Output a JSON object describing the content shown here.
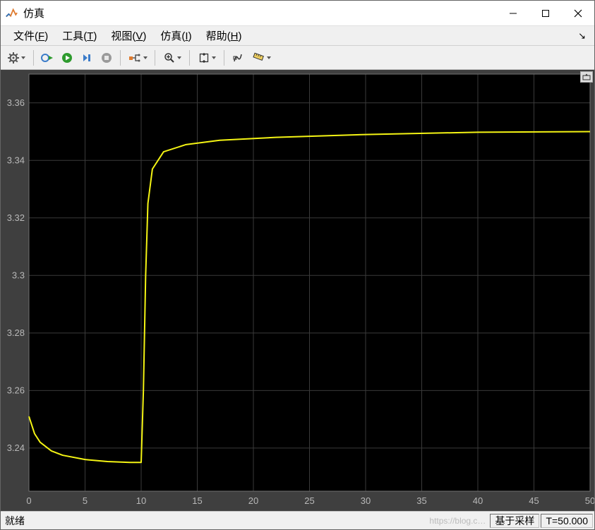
{
  "window": {
    "title": "仿真",
    "app_icon_colors": {
      "orange": "#e07b2e",
      "blue": "#2d6fb7"
    }
  },
  "menu": {
    "items": [
      {
        "label": "文件",
        "accel": "F"
      },
      {
        "label": "工具",
        "accel": "T"
      },
      {
        "label": "视图",
        "accel": "V"
      },
      {
        "label": "仿真",
        "accel": "I"
      },
      {
        "label": "帮助",
        "accel": "H"
      }
    ]
  },
  "toolbar": {
    "gear": {
      "name": "gear-icon",
      "dropdown": true
    },
    "rerun": {
      "name": "rerun-icon"
    },
    "play": {
      "name": "play-icon",
      "color": "#2e9b2e"
    },
    "step": {
      "name": "step-icon",
      "color": "#3b7cc9"
    },
    "stop": {
      "name": "stop-icon",
      "disabled_color": "#9a9a9a"
    },
    "signal": {
      "name": "signal-selector-icon",
      "dropdown": true
    },
    "zoom": {
      "name": "zoom-icon",
      "dropdown": true
    },
    "autoscale": {
      "name": "autoscale-icon",
      "dropdown": true
    },
    "cursor": {
      "name": "cursor-measurements-icon"
    },
    "ruler": {
      "name": "ruler-icon",
      "dropdown": true
    }
  },
  "scope": {
    "type": "line",
    "background_color": "#000000",
    "frame_color": "#3f3f3f",
    "grid_color": "#3a3a3a",
    "axis_label_color": "#b8b8b8",
    "axis_fontsize": 13,
    "line_color": "#f4f414",
    "line_width": 2,
    "xlim": [
      0,
      50
    ],
    "ylim": [
      3.225,
      3.37
    ],
    "xticks": [
      0,
      5,
      10,
      15,
      20,
      25,
      30,
      35,
      40,
      45,
      50
    ],
    "yticks": [
      3.24,
      3.26,
      3.28,
      3.3,
      3.32,
      3.34,
      3.36
    ],
    "ytick_labels": [
      "3.24",
      "3.26",
      "3.28",
      "3.3",
      "3.32",
      "3.34",
      "3.36"
    ],
    "series": [
      {
        "x": 0,
        "y": 3.251
      },
      {
        "x": 0.5,
        "y": 3.245
      },
      {
        "x": 1.0,
        "y": 3.242
      },
      {
        "x": 2.0,
        "y": 3.239
      },
      {
        "x": 3.0,
        "y": 3.2375
      },
      {
        "x": 5.0,
        "y": 3.236
      },
      {
        "x": 7.0,
        "y": 3.2353
      },
      {
        "x": 9.0,
        "y": 3.235
      },
      {
        "x": 10.0,
        "y": 3.235
      },
      {
        "x": 10.2,
        "y": 3.26
      },
      {
        "x": 10.4,
        "y": 3.3
      },
      {
        "x": 10.6,
        "y": 3.325
      },
      {
        "x": 11.0,
        "y": 3.337
      },
      {
        "x": 12.0,
        "y": 3.343
      },
      {
        "x": 14.0,
        "y": 3.3455
      },
      {
        "x": 17.0,
        "y": 3.347
      },
      {
        "x": 22.0,
        "y": 3.348
      },
      {
        "x": 30.0,
        "y": 3.349
      },
      {
        "x": 40.0,
        "y": 3.3498
      },
      {
        "x": 50.0,
        "y": 3.35
      }
    ],
    "max_icon_name": "maximize-axes-icon"
  },
  "status": {
    "ready": "就绪",
    "sample_mode": "基于采样",
    "time_label": "T=50.000",
    "watermark": "https://blog.c…"
  }
}
